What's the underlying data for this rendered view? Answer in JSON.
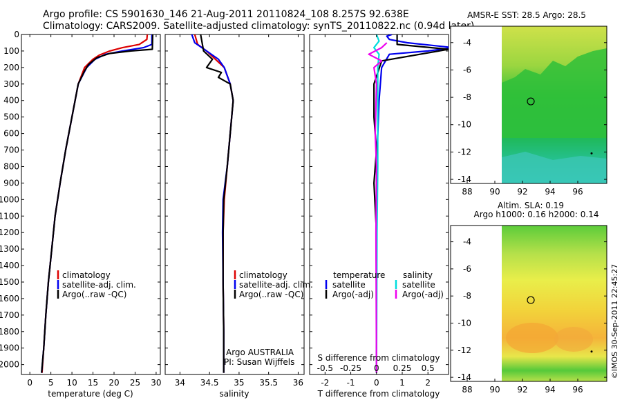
{
  "header": {
    "line1": "Argo profile: CS 5901630_146 21-Aug-2011 20110824_108 8.257S 92.638E",
    "line2": "Climatology: CARS2009. Satellite-adjusted climatology: synTS_20110822.nc (0.94d later)"
  },
  "footer": {
    "stamp": "©IMOS 30-Sep-2011 22:45:27"
  },
  "colors": {
    "climatology": "#dd0000",
    "satellite": "#0000ee",
    "argo": "#000000",
    "sat_salinity": "#00dddd",
    "argo_salinity": "#ee00ee"
  },
  "chart_data": [
    {
      "id": "temperature",
      "type": "line",
      "xlabel": "temperature (deg C)",
      "ylabel": "",
      "xlim": [
        -2,
        31
      ],
      "ylim": [
        2060,
        0
      ],
      "x_ticks": [
        0,
        5,
        10,
        15,
        20,
        25,
        30
      ],
      "y_ticks": [
        0,
        100,
        200,
        300,
        400,
        500,
        600,
        700,
        800,
        900,
        1000,
        1100,
        1200,
        1300,
        1400,
        1500,
        1600,
        1700,
        1800,
        1900,
        2000
      ],
      "legend": [
        "climatology",
        "satellite-adj. clim.",
        "Argo(..raw -QC)"
      ],
      "series": [
        {
          "name": "climatology",
          "color": "#dd0000",
          "points": [
            [
              27.9,
              0
            ],
            [
              27.8,
              30
            ],
            [
              26,
              60
            ],
            [
              22,
              80
            ],
            [
              19,
              100
            ],
            [
              16.5,
              125
            ],
            [
              15,
              150
            ],
            [
              13,
              200
            ],
            [
              11.5,
              300
            ],
            [
              10,
              500
            ],
            [
              8.5,
              700
            ],
            [
              7.2,
              900
            ],
            [
              6,
              1100
            ],
            [
              5.2,
              1300
            ],
            [
              4.4,
              1500
            ],
            [
              3.8,
              1700
            ],
            [
              3.3,
              1900
            ],
            [
              2.9,
              2050
            ]
          ]
        },
        {
          "name": "satellite-adj. clim.",
          "color": "#0000ee",
          "points": [
            [
              29,
              0
            ],
            [
              29,
              60
            ],
            [
              27,
              80
            ],
            [
              22,
              100
            ],
            [
              18,
              120
            ],
            [
              15.5,
              150
            ],
            [
              13.5,
              200
            ],
            [
              11.5,
              300
            ],
            [
              10,
              500
            ],
            [
              8.5,
              700
            ],
            [
              7.2,
              900
            ],
            [
              6,
              1100
            ],
            [
              5.2,
              1300
            ],
            [
              4.4,
              1500
            ],
            [
              3.8,
              1700
            ],
            [
              3.3,
              1900
            ],
            [
              2.8,
              2050
            ]
          ]
        },
        {
          "name": "Argo(..raw -QC)",
          "color": "#000000",
          "points": [
            [
              29.2,
              0
            ],
            [
              29.1,
              90
            ],
            [
              24,
              100
            ],
            [
              19,
              115
            ],
            [
              16,
              140
            ],
            [
              14,
              180
            ],
            [
              13,
              220
            ],
            [
              11.5,
              300
            ],
            [
              10,
              500
            ],
            [
              8.5,
              700
            ],
            [
              7.2,
              900
            ],
            [
              6,
              1100
            ],
            [
              5.2,
              1300
            ],
            [
              4.4,
              1500
            ],
            [
              3.8,
              1700
            ],
            [
              3.3,
              1900
            ],
            [
              2.8,
              2050
            ]
          ]
        }
      ]
    },
    {
      "id": "salinity",
      "type": "line",
      "xlabel": "salinity",
      "xlim": [
        33.75,
        36.1
      ],
      "ylim": [
        2060,
        0
      ],
      "x_ticks": [
        34,
        34.5,
        35,
        35.5,
        36
      ],
      "legend": [
        "climatology",
        "satellite-adj. clim.",
        "Argo(..raw -QC)"
      ],
      "annotation": [
        "Argo AUSTRALIA",
        "PI: Susan Wijffels"
      ],
      "series": [
        {
          "name": "climatology",
          "color": "#dd0000",
          "points": [
            [
              34.25,
              0
            ],
            [
              34.3,
              60
            ],
            [
              34.45,
              100
            ],
            [
              34.6,
              150
            ],
            [
              34.75,
              200
            ],
            [
              34.85,
              300
            ],
            [
              34.9,
              400
            ],
            [
              34.85,
              600
            ],
            [
              34.8,
              800
            ],
            [
              34.75,
              1000
            ],
            [
              34.73,
              1200
            ],
            [
              34.73,
              1500
            ],
            [
              34.74,
              1800
            ],
            [
              34.74,
              2050
            ]
          ]
        },
        {
          "name": "satellite-adj. clim.",
          "color": "#0000ee",
          "points": [
            [
              34.2,
              0
            ],
            [
              34.25,
              50
            ],
            [
              34.45,
              100
            ],
            [
              34.65,
              150
            ],
            [
              34.75,
              200
            ],
            [
              34.85,
              300
            ],
            [
              34.9,
              400
            ],
            [
              34.85,
              600
            ],
            [
              34.8,
              800
            ],
            [
              34.73,
              1000
            ],
            [
              34.72,
              1200
            ],
            [
              34.73,
              1500
            ],
            [
              34.74,
              1800
            ],
            [
              34.74,
              2050
            ]
          ]
        },
        {
          "name": "Argo(..raw -QC)",
          "color": "#000000",
          "points": [
            [
              34.35,
              0
            ],
            [
              34.4,
              100
            ],
            [
              34.55,
              150
            ],
            [
              34.45,
              200
            ],
            [
              34.7,
              230
            ],
            [
              34.65,
              260
            ],
            [
              34.85,
              300
            ],
            [
              34.9,
              400
            ],
            [
              34.85,
              600
            ],
            [
              34.8,
              800
            ],
            [
              34.74,
              1000
            ],
            [
              34.73,
              1200
            ],
            [
              34.73,
              1500
            ],
            [
              34.74,
              1800
            ],
            [
              34.74,
              2050
            ]
          ]
        }
      ]
    },
    {
      "id": "difference",
      "type": "line",
      "xlabel": "T difference from climatology",
      "toplabel": "S difference from climatology",
      "xlim": [
        -2.6,
        2.8
      ],
      "ylim": [
        2060,
        0
      ],
      "x_ticks": [
        -2,
        -1,
        0,
        1,
        2
      ],
      "s_ticks": [
        "-0.5",
        "-0.25",
        "0",
        "0.25",
        "0.5"
      ],
      "s_tick_values": [
        -0.5,
        -0.25,
        0,
        0.25,
        0.5
      ],
      "legend_headers": [
        "temperature",
        "salinity"
      ],
      "legend": [
        "satellite",
        "Argo(-adj)",
        "satellite",
        "Argo(-adj)"
      ],
      "series": [
        {
          "name": "temperature satellite",
          "color": "#0000ee",
          "points": [
            [
              0.6,
              0
            ],
            [
              0.4,
              10
            ],
            [
              0.5,
              30
            ],
            [
              1.2,
              50
            ],
            [
              3,
              80
            ],
            [
              2,
              100
            ],
            [
              0.5,
              120
            ],
            [
              0.2,
              200
            ],
            [
              0.1,
              400
            ],
            [
              0,
              800
            ],
            [
              0,
              1200
            ],
            [
              0,
              2050
            ]
          ]
        },
        {
          "name": "temperature Argo(-adj)",
          "color": "#000000",
          "points": [
            [
              0.8,
              0
            ],
            [
              0.8,
              60
            ],
            [
              2.8,
              90
            ],
            [
              0.2,
              160
            ],
            [
              -0.1,
              300
            ],
            [
              -0.1,
              500
            ],
            [
              0,
              700
            ],
            [
              -0.1,
              900
            ],
            [
              0,
              1200
            ],
            [
              0,
              2050
            ]
          ]
        },
        {
          "name": "salinity satellite",
          "color": "#00dddd",
          "points": [
            [
              0,
              0
            ],
            [
              0.1,
              40
            ],
            [
              -0.1,
              80
            ],
            [
              0.1,
              120
            ],
            [
              0.05,
              200
            ],
            [
              0.05,
              400
            ],
            [
              0.05,
              800
            ],
            [
              0.02,
              1200
            ],
            [
              0,
              2050
            ]
          ]
        },
        {
          "name": "salinity Argo(-adj)",
          "color": "#ee00ee",
          "points": [
            [
              0.4,
              50
            ],
            [
              0.2,
              80
            ],
            [
              -0.3,
              120
            ],
            [
              0.2,
              160
            ],
            [
              -0.1,
              200
            ],
            [
              0,
              300
            ],
            [
              -0.05,
              600
            ],
            [
              0,
              800
            ],
            [
              -0.02,
              1200
            ],
            [
              0,
              2050
            ]
          ]
        }
      ]
    },
    {
      "id": "sst_map",
      "type": "heatmap",
      "title": "AMSR-E SST: 28.5  Argo: 28.5",
      "xlim": [
        86.8,
        98.1
      ],
      "ylim": [
        -14.3,
        -2.8
      ],
      "x_ticks": [
        88,
        90,
        92,
        94,
        96
      ],
      "y_ticks": [
        -4,
        -6,
        -8,
        -10,
        -12,
        -14
      ],
      "marker": [
        92.6,
        -8.3
      ],
      "dot": [
        97,
        -12.1
      ]
    },
    {
      "id": "sla_map",
      "type": "heatmap",
      "title": "Altim. SLA: 0.19",
      "subtitle": "Argo h1000: 0.16 h2000: 0.14",
      "xlim": [
        86.8,
        98.1
      ],
      "ylim": [
        -14.3,
        -2.8
      ],
      "x_ticks": [
        88,
        90,
        92,
        94,
        96
      ],
      "y_ticks": [
        -4,
        -6,
        -8,
        -10,
        -12,
        -14
      ],
      "marker": [
        92.6,
        -8.3
      ],
      "dot": [
        97,
        -12.1
      ]
    }
  ]
}
